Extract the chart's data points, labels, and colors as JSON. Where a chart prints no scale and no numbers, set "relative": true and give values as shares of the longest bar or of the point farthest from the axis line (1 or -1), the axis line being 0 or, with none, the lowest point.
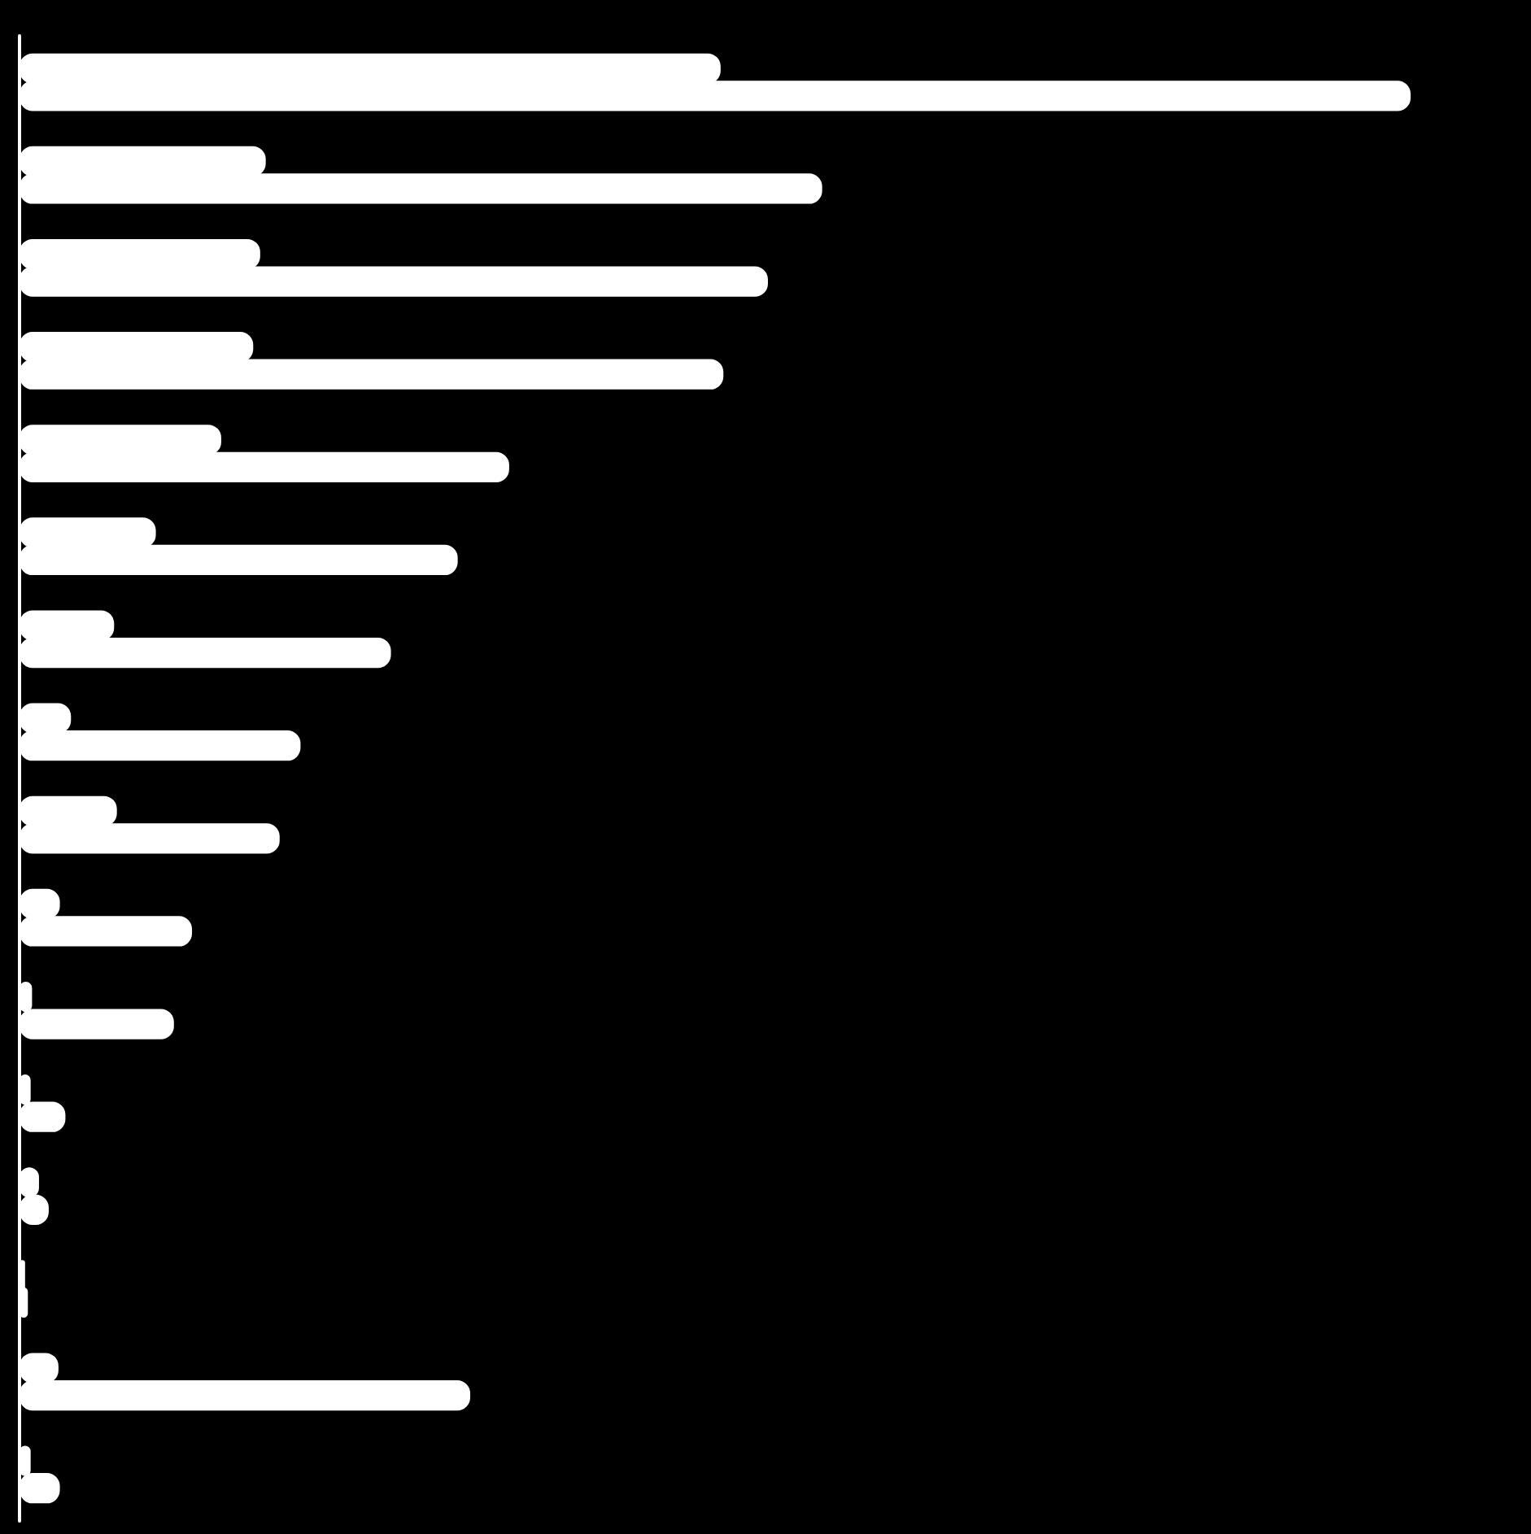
{
  "chart_data": {
    "type": "bar",
    "orientation": "horizontal",
    "relative": true,
    "categories": [
      null,
      null,
      null,
      null,
      null,
      null,
      null,
      null,
      null,
      null,
      null,
      null,
      null,
      null,
      null,
      null
    ],
    "series": [
      {
        "color": "#ffffff",
        "values": [
          0.504,
          0.177,
          0.173,
          0.168,
          0.145,
          0.098,
          0.068,
          0.037,
          0.07,
          0.029,
          0.009,
          0.008,
          0.014,
          0.004,
          0.028,
          0.008
        ]
      },
      {
        "color": "#ffffff",
        "values": [
          1,
          0.577,
          0.538,
          0.506,
          0.352,
          0.315,
          0.267,
          0.202,
          0.187,
          0.124,
          0.111,
          0.033,
          0.021,
          0.006,
          0.324,
          0.029
        ]
      }
    ]
  }
}
